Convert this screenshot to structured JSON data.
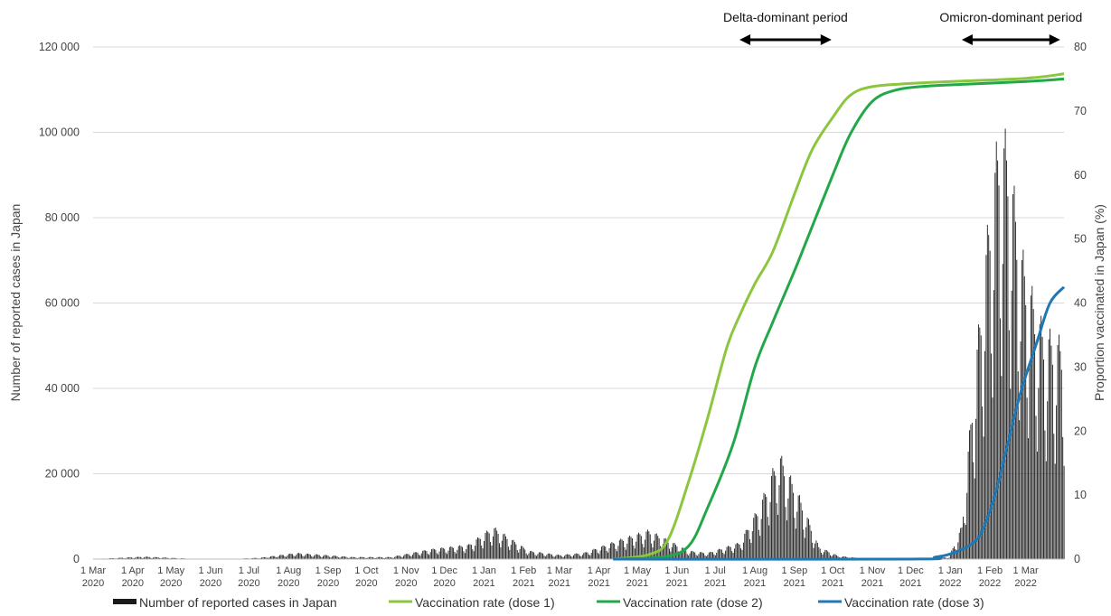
{
  "chart_data": {
    "type": "bar+line",
    "left_axis": {
      "label": "Number of reported cases in Japan",
      "range": [
        0,
        120000
      ],
      "ticks": [
        0,
        20000,
        40000,
        60000,
        80000,
        100000,
        120000
      ],
      "tick_labels": [
        "0",
        "20 000",
        "40 000",
        "60 000",
        "80 000",
        "100 000",
        "120 000"
      ]
    },
    "right_axis": {
      "label": "Proportion vaccinated in Japan (%)",
      "range": [
        0,
        80
      ],
      "ticks": [
        0,
        10,
        20,
        30,
        40,
        50,
        60,
        70,
        80
      ],
      "tick_labels": [
        "0",
        "10",
        "20",
        "30",
        "40",
        "50",
        "60",
        "70",
        "80"
      ]
    },
    "x_axis": {
      "range": [
        "2020-03-01",
        "2022-03-31"
      ],
      "tick_labels": [
        [
          "1 Mar",
          "2020"
        ],
        [
          "1 Apr",
          "2020"
        ],
        [
          "1 May",
          "2020"
        ],
        [
          "1 Jun",
          "2020"
        ],
        [
          "1 Jul",
          "2020"
        ],
        [
          "1 Aug",
          "2020"
        ],
        [
          "1 Sep",
          "2020"
        ],
        [
          "1 Oct",
          "2020"
        ],
        [
          "1 Nov",
          "2020"
        ],
        [
          "1 Dec",
          "2020"
        ],
        [
          "1 Jan",
          "2021"
        ],
        [
          "1 Feb",
          "2021"
        ],
        [
          "1 Mar",
          "2021"
        ],
        [
          "1 Apr",
          "2021"
        ],
        [
          "1 May",
          "2021"
        ],
        [
          "1 Jun",
          "2021"
        ],
        [
          "1 Jul",
          "2021"
        ],
        [
          "1 Aug",
          "2021"
        ],
        [
          "1 Sep",
          "2021"
        ],
        [
          "1 Oct",
          "2021"
        ],
        [
          "1 Nov",
          "2021"
        ],
        [
          "1 Dec",
          "2021"
        ],
        [
          "1 Jan",
          "2022"
        ],
        [
          "1 Feb",
          "2022"
        ],
        [
          "1 Mar",
          "2022"
        ]
      ]
    },
    "grid": "horizontal",
    "legend_position": "bottom",
    "periods": [
      {
        "label": "Delta-dominant period",
        "start": "2021-07-20",
        "end": "2021-09-30"
      },
      {
        "label": "Omicron-dominant period",
        "start": "2022-01-10",
        "end": "2022-03-28"
      }
    ],
    "cases_series": {
      "name": "Number of reported cases in Japan",
      "color": "#1a1a1a",
      "values": [
        {
          "date": "2020-03-01",
          "cases": 20
        },
        {
          "date": "2020-04-10",
          "cases": 600
        },
        {
          "date": "2020-05-20",
          "cases": 50
        },
        {
          "date": "2020-06-20",
          "cases": 60
        },
        {
          "date": "2020-07-10",
          "cases": 350
        },
        {
          "date": "2020-08-07",
          "cases": 1500
        },
        {
          "date": "2020-09-20",
          "cases": 500
        },
        {
          "date": "2020-10-20",
          "cases": 500
        },
        {
          "date": "2020-11-20",
          "cases": 2400
        },
        {
          "date": "2020-12-20",
          "cases": 3500
        },
        {
          "date": "2021-01-08",
          "cases": 7800
        },
        {
          "date": "2021-02-05",
          "cases": 2000
        },
        {
          "date": "2021-03-01",
          "cases": 1000
        },
        {
          "date": "2021-03-20",
          "cases": 1500
        },
        {
          "date": "2021-04-20",
          "cases": 5000
        },
        {
          "date": "2021-05-10",
          "cases": 7000
        },
        {
          "date": "2021-06-10",
          "cases": 2000
        },
        {
          "date": "2021-06-25",
          "cases": 1500
        },
        {
          "date": "2021-07-20",
          "cases": 4000
        },
        {
          "date": "2021-08-05",
          "cases": 13000
        },
        {
          "date": "2021-08-20",
          "cases": 25500
        },
        {
          "date": "2021-09-05",
          "cases": 15000
        },
        {
          "date": "2021-09-20",
          "cases": 3000
        },
        {
          "date": "2021-10-05",
          "cases": 800
        },
        {
          "date": "2021-10-20",
          "cases": 300
        },
        {
          "date": "2021-12-01",
          "cases": 100
        },
        {
          "date": "2021-12-31",
          "cases": 500
        },
        {
          "date": "2022-01-10",
          "cases": 8000
        },
        {
          "date": "2022-01-20",
          "cases": 45000
        },
        {
          "date": "2022-02-01",
          "cases": 85000
        },
        {
          "date": "2022-02-08",
          "cases": 103000
        },
        {
          "date": "2022-02-15",
          "cases": 100000
        },
        {
          "date": "2022-02-25",
          "cases": 75000
        },
        {
          "date": "2022-03-05",
          "cases": 65000
        },
        {
          "date": "2022-03-15",
          "cases": 55000
        },
        {
          "date": "2022-03-30",
          "cases": 52000
        }
      ]
    },
    "series": [
      {
        "name": "Vaccination rate (dose 1)",
        "color": "#8cc63f",
        "values": [
          {
            "date": "2021-04-12",
            "pct": 0
          },
          {
            "date": "2021-05-10",
            "pct": 0.7
          },
          {
            "date": "2021-05-25",
            "pct": 3
          },
          {
            "date": "2021-06-10",
            "pct": 12
          },
          {
            "date": "2021-06-25",
            "pct": 22
          },
          {
            "date": "2021-07-10",
            "pct": 33
          },
          {
            "date": "2021-07-20",
            "pct": 38
          },
          {
            "date": "2021-08-01",
            "pct": 43
          },
          {
            "date": "2021-08-15",
            "pct": 48
          },
          {
            "date": "2021-09-01",
            "pct": 57
          },
          {
            "date": "2021-09-15",
            "pct": 64
          },
          {
            "date": "2021-10-01",
            "pct": 69
          },
          {
            "date": "2021-10-15",
            "pct": 72.5
          },
          {
            "date": "2021-11-01",
            "pct": 73.8
          },
          {
            "date": "2021-12-01",
            "pct": 74.3
          },
          {
            "date": "2022-01-01",
            "pct": 74.6
          },
          {
            "date": "2022-03-01",
            "pct": 75.1
          },
          {
            "date": "2022-03-31",
            "pct": 75.8
          }
        ]
      },
      {
        "name": "Vaccination rate (dose 2)",
        "color": "#22a848",
        "values": [
          {
            "date": "2021-04-12",
            "pct": 0
          },
          {
            "date": "2021-05-20",
            "pct": 0.3
          },
          {
            "date": "2021-06-10",
            "pct": 2
          },
          {
            "date": "2021-06-25",
            "pct": 8
          },
          {
            "date": "2021-07-15",
            "pct": 18
          },
          {
            "date": "2021-08-01",
            "pct": 30
          },
          {
            "date": "2021-08-15",
            "pct": 37
          },
          {
            "date": "2021-09-01",
            "pct": 45
          },
          {
            "date": "2021-09-15",
            "pct": 52
          },
          {
            "date": "2021-10-01",
            "pct": 60
          },
          {
            "date": "2021-10-15",
            "pct": 66.5
          },
          {
            "date": "2021-11-01",
            "pct": 71.5
          },
          {
            "date": "2021-11-20",
            "pct": 73.3
          },
          {
            "date": "2021-12-15",
            "pct": 73.9
          },
          {
            "date": "2022-01-15",
            "pct": 74.2
          },
          {
            "date": "2022-03-01",
            "pct": 74.6
          },
          {
            "date": "2022-03-31",
            "pct": 75
          }
        ]
      },
      {
        "name": "Vaccination rate (dose 3)",
        "color": "#1f77b4",
        "values": [
          {
            "date": "2021-04-12",
            "pct": 0
          },
          {
            "date": "2021-12-01",
            "pct": 0
          },
          {
            "date": "2021-12-20",
            "pct": 0.3
          },
          {
            "date": "2022-01-01",
            "pct": 0.8
          },
          {
            "date": "2022-01-15",
            "pct": 2
          },
          {
            "date": "2022-01-25",
            "pct": 4
          },
          {
            "date": "2022-02-05",
            "pct": 10
          },
          {
            "date": "2022-02-15",
            "pct": 18
          },
          {
            "date": "2022-02-25",
            "pct": 26
          },
          {
            "date": "2022-03-10",
            "pct": 34
          },
          {
            "date": "2022-03-20",
            "pct": 40
          },
          {
            "date": "2022-03-31",
            "pct": 42.5
          }
        ]
      }
    ]
  }
}
